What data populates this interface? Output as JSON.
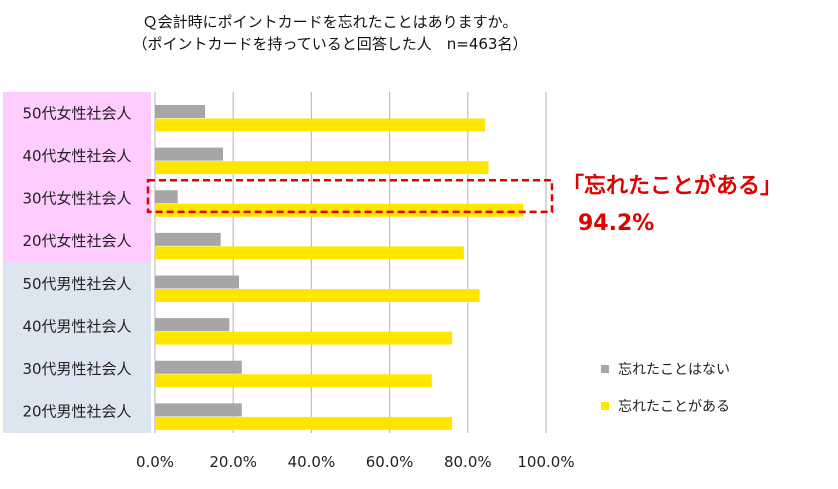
{
  "title_line1": "Ｑ会計時にポイントカードを忘れたことはありますか。",
  "title_line2": "（ポイントカードを持っていると回答した人　n=463名）",
  "callout": {
    "label": "「忘れたことがある」",
    "value": "94.2%",
    "color": "#e00000",
    "highlight_category": "30代女性社会人"
  },
  "colors": {
    "never": "#a6a6a6",
    "forgot": "#ffe600",
    "female_band": "#ffccff",
    "male_band": "#dce6f1",
    "grid": "#bfbfbf"
  },
  "chart_data": {
    "type": "bar",
    "orientation": "horizontal",
    "categories": [
      "50代女性社会人",
      "40代女性社会人",
      "30代女性社会人",
      "20代女性社会人",
      "50代男性社会人",
      "40代男性社会人",
      "30代男性社会人",
      "20代男性社会人"
    ],
    "series": [
      {
        "name": "忘れたことはない",
        "color": "#a6a6a6",
        "values": [
          0.128,
          0.174,
          0.058,
          0.168,
          0.215,
          0.19,
          0.222,
          0.222
        ]
      },
      {
        "name": "忘れたことがある",
        "color": "#ffe600",
        "values": [
          0.844,
          0.853,
          0.942,
          0.79,
          0.83,
          0.76,
          0.708,
          0.76
        ]
      }
    ],
    "xlim": [
      0,
      1
    ],
    "xticks": [
      "0.0%",
      "20.0%",
      "40.0%",
      "60.0%",
      "80.0%",
      "100.0%"
    ],
    "grid": true,
    "legend_position": "bottom-right"
  }
}
